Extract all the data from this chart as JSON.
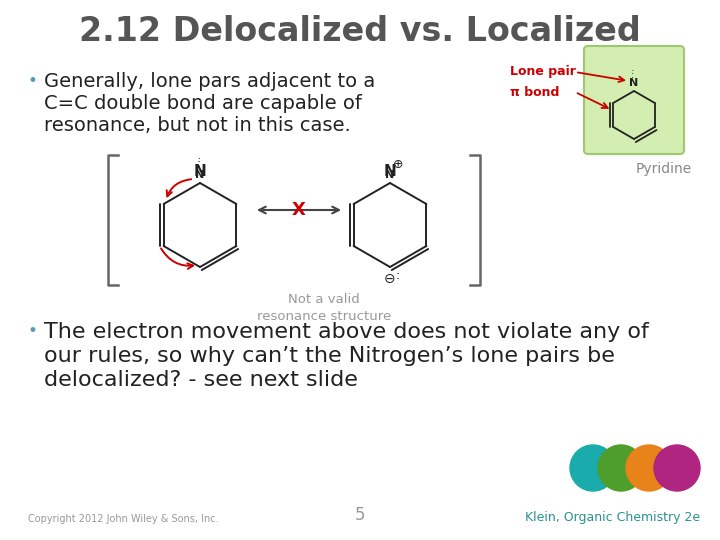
{
  "title": "2.12 Delocalized vs. Localized",
  "title_fontsize": 24,
  "title_color": "#555555",
  "bg_color": "#ffffff",
  "bullet1_lines": [
    "Generally, lone pars adjacent to a",
    "C=C double bond are capable of",
    "resonance, but not in this case."
  ],
  "bullet2_lines": [
    "The electron movement above does not violate any of",
    "our rules, so why can’t the Nitrogen’s lone pairs be",
    "delocalized? - see next slide"
  ],
  "bullet_fontsize": 14,
  "bullet2_fontsize": 16,
  "bullet_color": "#222222",
  "lone_pair_label": "Lone pair",
  "pi_bond_label": "π bond",
  "label_color": "#cc0000",
  "pyridine_label": "Pyridine",
  "pyridine_label_color": "#888888",
  "not_valid_label": "Not a valid\nresonance structure",
  "not_valid_color": "#999999",
  "copyright": "Copyright 2012 John Wiley & Sons, Inc.",
  "page_num": "5",
  "footer_right": "Klein, Organic Chemistry 2e",
  "footer_color": "#999999",
  "footer_right_color": "#2a9090",
  "circle_colors": [
    "#1aacac",
    "#4d9e2a",
    "#e8831a",
    "#b02580"
  ],
  "bracket_color": "#666666",
  "green_box_color": "#d4edb0",
  "green_box_edge": "#9dc870",
  "arrow_color": "#cc0000",
  "double_arrow_color": "#444444",
  "cross_color": "#cc0000",
  "mol_color": "#222222",
  "bullet_dot_color": "#5599bb"
}
